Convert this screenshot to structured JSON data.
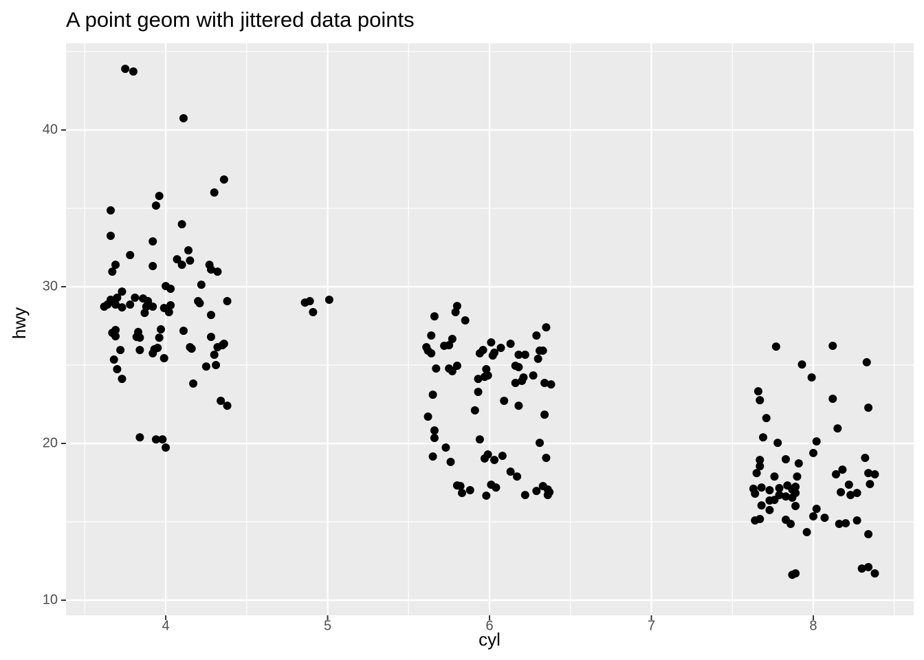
{
  "chart_data": {
    "type": "scatter",
    "title": "A point geom with jittered data points",
    "x_label": "cyl",
    "y_label": "hwy",
    "xlim": [
      3.384,
      8.62
    ],
    "ylim": [
      9.035,
      45.53
    ],
    "xticks": [
      4,
      5,
      6,
      7,
      8
    ],
    "yticks": [
      10,
      20,
      30,
      40
    ],
    "x_minor_grid": [
      3.5,
      4.5,
      5.5,
      6.5,
      7.5,
      8.5
    ],
    "y_minor_grid": [
      15,
      25,
      35,
      45
    ],
    "grid": true,
    "color": "#000000",
    "x": [
      3.75,
      3.8,
      4.11,
      3.66,
      4.36,
      4.3,
      3.96,
      3.94,
      3.66,
      4.1,
      3.92,
      3.78,
      4.14,
      4.07,
      4.15,
      3.69,
      3.92,
      4.1,
      4.27,
      4.28,
      4.32,
      3.67,
      4.22,
      4.0,
      4.03,
      3.73,
      3.7,
      3.81,
      3.86,
      3.66,
      3.89,
      4.38,
      4.2,
      3.62,
      3.64,
      3.69,
      3.73,
      3.78,
      3.88,
      3.92,
      4.03,
      3.99,
      4.02,
      4.21,
      3.87,
      4.28,
      3.69,
      3.67,
      3.69,
      3.83,
      3.82,
      3.84,
      3.97,
      3.96,
      4.11,
      4.28,
      4.15,
      4.16,
      4.36,
      4.35,
      4.32,
      3.72,
      3.84,
      3.93,
      3.95,
      3.92,
      4.3,
      3.99,
      3.68,
      4.25,
      4.31,
      3.7,
      3.73,
      4.17,
      4.34,
      4.38,
      3.84,
      3.94,
      3.98,
      4.0,
      4.86,
      4.89,
      4.91,
      5.01,
      5.8,
      5.79,
      5.66,
      5.85,
      5.64,
      5.77,
      6.35,
      6.29,
      5.61,
      5.62,
      5.64,
      5.72,
      5.75,
      6.01,
      5.96,
      5.94,
      6.03,
      6.07,
      6.13,
      6.18,
      6.22,
      6.02,
      6.31,
      6.33,
      6.3,
      5.67,
      5.75,
      5.77,
      5.8,
      5.98,
      5.97,
      5.99,
      5.93,
      6.16,
      6.18,
      6.21,
      6.2,
      6.16,
      6.27,
      6.34,
      6.38,
      5.65,
      5.93,
      6.09,
      6.18,
      5.91,
      5.62,
      6.34,
      5.66,
      5.66,
      5.94,
      6.31,
      5.73,
      5.65,
      5.99,
      5.97,
      6.03,
      6.08,
      6.35,
      5.76,
      6.13,
      6.17,
      5.8,
      5.82,
      5.83,
      5.88,
      6.01,
      6.04,
      5.98,
      6.22,
      6.29,
      6.33,
      6.36,
      6.37,
      6.36,
      7.77,
      8.12,
      8.33,
      7.93,
      7.99,
      7.66,
      7.67,
      8.12,
      8.34,
      7.71,
      8.15,
      7.69,
      7.78,
      8.02,
      8.0,
      7.67,
      7.83,
      7.91,
      8.32,
      7.67,
      7.65,
      7.76,
      7.9,
      8.18,
      8.14,
      8.34,
      8.38,
      7.63,
      7.68,
      7.73,
      7.64,
      7.79,
      7.84,
      7.87,
      7.89,
      7.89,
      7.79,
      7.83,
      7.76,
      7.87,
      8.22,
      8.17,
      8.23,
      8.35,
      8.27,
      7.68,
      7.73,
      7.89,
      7.64,
      7.67,
      7.73,
      7.83,
      7.86,
      8.02,
      8.0,
      8.07,
      8.16,
      8.2,
      8.27,
      7.96,
      8.34,
      8.3,
      8.34,
      8.38,
      7.87,
      7.89
    ],
    "values": [
      43.9,
      43.73,
      40.75,
      34.87,
      36.84,
      36.01,
      35.79,
      35.18,
      33.25,
      33.99,
      32.89,
      32.02,
      32.32,
      31.75,
      31.67,
      31.4,
      31.32,
      31.4,
      31.4,
      31.1,
      30.96,
      30.96,
      30.13,
      30.04,
      29.87,
      29.69,
      29.3,
      29.3,
      29.25,
      29.17,
      29.08,
      29.08,
      29.08,
      28.73,
      28.86,
      28.86,
      28.68,
      28.86,
      28.73,
      28.73,
      28.82,
      28.64,
      28.38,
      28.95,
      28.33,
      28.2,
      27.24,
      27.06,
      26.84,
      27.11,
      26.8,
      26.75,
      27.28,
      26.75,
      27.19,
      26.8,
      26.14,
      26.05,
      26.36,
      26.27,
      26.14,
      25.96,
      25.96,
      26.01,
      26.1,
      25.75,
      25.66,
      25.44,
      25.35,
      24.91,
      25.0,
      24.74,
      24.12,
      23.82,
      22.72,
      22.41,
      20.39,
      20.26,
      20.26,
      19.74,
      28.99,
      29.08,
      28.38,
      29.17,
      28.77,
      28.38,
      28.11,
      27.85,
      26.89,
      26.67,
      27.41,
      26.89,
      26.14,
      25.92,
      25.75,
      26.23,
      26.27,
      26.45,
      25.96,
      25.75,
      25.79,
      26.1,
      26.36,
      25.66,
      25.66,
      25.61,
      25.92,
      25.92,
      25.4,
      24.78,
      24.78,
      24.61,
      24.96,
      24.74,
      24.25,
      24.34,
      24.12,
      24.96,
      24.87,
      24.21,
      23.99,
      23.86,
      24.34,
      23.86,
      23.77,
      23.11,
      23.29,
      22.72,
      22.41,
      22.11,
      21.71,
      21.84,
      20.83,
      20.35,
      20.26,
      20.04,
      19.74,
      19.17,
      19.3,
      19.04,
      18.95,
      19.21,
      19.08,
      18.82,
      18.2,
      17.89,
      17.32,
      17.28,
      16.84,
      17.02,
      17.37,
      17.19,
      16.67,
      16.71,
      16.97,
      17.28,
      17.06,
      16.89,
      16.71,
      26.18,
      26.23,
      25.18,
      25.04,
      24.21,
      23.33,
      22.76,
      22.85,
      22.28,
      21.62,
      20.96,
      20.39,
      20.04,
      20.13,
      19.39,
      18.95,
      18.99,
      18.73,
      19.08,
      18.55,
      18.11,
      17.89,
      17.89,
      18.33,
      18.03,
      18.11,
      18.03,
      17.11,
      17.19,
      17.02,
      16.8,
      17.15,
      17.32,
      17.06,
      17.24,
      16.84,
      16.71,
      16.62,
      16.4,
      16.54,
      17.37,
      16.89,
      16.71,
      17.41,
      16.84,
      16.05,
      16.36,
      16.01,
      15.09,
      15.18,
      15.75,
      15.13,
      14.87,
      15.83,
      15.35,
      15.26,
      14.87,
      14.91,
      15.09,
      14.34,
      14.21,
      12.02,
      12.11,
      11.71,
      11.62,
      11.71
    ]
  }
}
